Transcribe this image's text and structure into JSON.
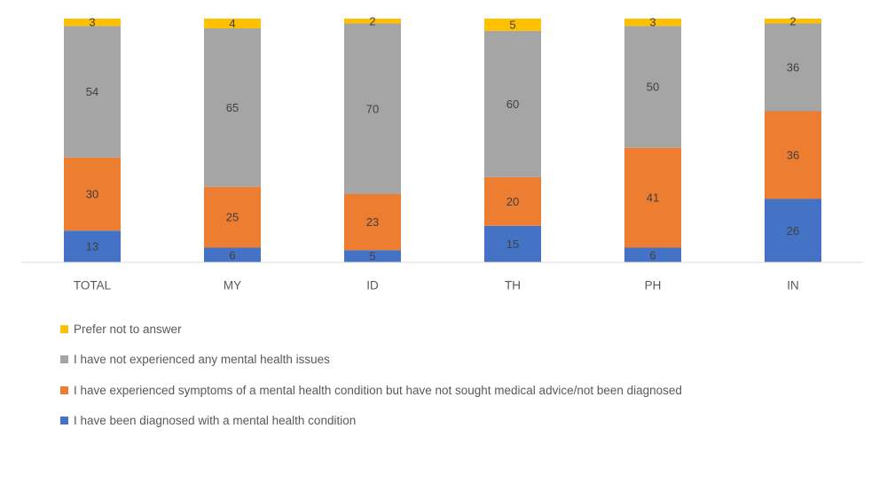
{
  "chart_data": {
    "type": "bar",
    "stacked": true,
    "categories": [
      "TOTAL",
      "MY",
      "ID",
      "TH",
      "PH",
      "IN"
    ],
    "ylim": [
      0,
      100
    ],
    "title": "",
    "xlabel": "",
    "ylabel": "",
    "grid": false,
    "legend_position": "bottom",
    "series": [
      {
        "name": "I have been diagnosed with a mental health condition",
        "color": "#4472C4",
        "values": [
          13,
          6,
          5,
          15,
          6,
          26
        ]
      },
      {
        "name": "I have experienced symptoms of a mental health condition but have not sought medical advice/not been diagnosed",
        "color": "#ED7D31",
        "values": [
          30,
          25,
          23,
          20,
          41,
          36
        ]
      },
      {
        "name": "I have not experienced any mental health issues",
        "color": "#A5A5A5",
        "values": [
          54,
          65,
          70,
          60,
          50,
          36
        ]
      },
      {
        "name": "Prefer not to answer",
        "color": "#FFC000",
        "values": [
          3,
          4,
          2,
          5,
          3,
          2
        ]
      }
    ],
    "legend_order": [
      3,
      2,
      1,
      0
    ]
  }
}
